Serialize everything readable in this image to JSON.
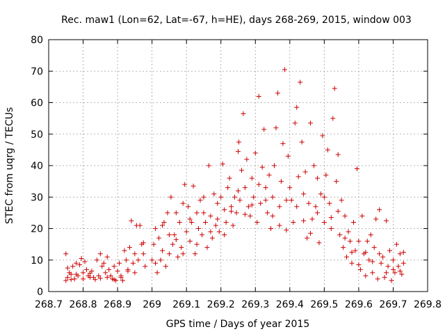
{
  "chart_data": {
    "type": "scatter",
    "title": "Rec. maw1 (Lon=62, Lat=-67, h=HE), days 268-269, 2015, window 003",
    "xlabel": "GPS time / Days of year 2015",
    "ylabel": "STEC from uqrg / TECUs",
    "xlim": [
      268.7,
      269.8
    ],
    "ylim": [
      0,
      80
    ],
    "xticks": [
      268.7,
      268.8,
      268.9,
      269.0,
      269.1,
      269.2,
      269.3,
      269.4,
      269.5,
      269.6,
      269.7,
      269.8
    ],
    "xtick_labels": [
      "268.7",
      "268.8",
      "268.9",
      "269",
      "269.1",
      "269.2",
      "269.3",
      "269.4",
      "269.5",
      "269.6",
      "269.7",
      "269.8"
    ],
    "yticks": [
      0,
      10,
      20,
      30,
      40,
      50,
      60,
      70,
      80
    ],
    "ytick_labels": [
      "0",
      "10",
      "20",
      "30",
      "40",
      "50",
      "60",
      "70",
      "80"
    ],
    "grid": true,
    "marker": "+",
    "color": "#cc0000",
    "series": [
      {
        "name": "STEC",
        "points": [
          [
            268.75,
            12.0
          ],
          [
            268.75,
            3.5
          ],
          [
            268.755,
            4.5
          ],
          [
            268.76,
            6.0
          ],
          [
            268.765,
            5.5
          ],
          [
            268.77,
            8.0
          ],
          [
            268.775,
            4.0
          ],
          [
            268.78,
            9.0
          ],
          [
            268.785,
            5.0
          ],
          [
            268.79,
            8.5
          ],
          [
            268.795,
            10.5
          ],
          [
            268.8,
            4.0
          ],
          [
            268.805,
            9.5
          ],
          [
            268.81,
            7.0
          ],
          [
            268.815,
            5.0
          ],
          [
            268.82,
            4.5
          ],
          [
            268.825,
            6.5
          ],
          [
            268.83,
            4.5
          ],
          [
            268.835,
            3.8
          ],
          [
            268.84,
            10.0
          ],
          [
            268.845,
            5.0
          ],
          [
            268.85,
            12.0
          ],
          [
            268.855,
            8.0
          ],
          [
            268.86,
            9.0
          ],
          [
            268.865,
            6.0
          ],
          [
            268.87,
            11.0
          ],
          [
            268.875,
            7.0
          ],
          [
            268.88,
            5.0
          ],
          [
            268.885,
            4.0
          ],
          [
            268.89,
            8.0
          ],
          [
            268.895,
            3.5
          ],
          [
            268.9,
            6.5
          ],
          [
            268.905,
            9.0
          ],
          [
            268.91,
            5.0
          ],
          [
            268.915,
            3.5
          ],
          [
            268.92,
            13.0
          ],
          [
            268.925,
            10.0
          ],
          [
            268.93,
            7.0
          ],
          [
            268.935,
            14.0
          ],
          [
            268.94,
            22.5
          ],
          [
            268.945,
            9.0
          ],
          [
            268.95,
            6.0
          ],
          [
            268.955,
            21.0
          ],
          [
            268.96,
            10.0
          ],
          [
            268.965,
            21.0
          ],
          [
            268.97,
            15.0
          ],
          [
            268.975,
            12.0
          ],
          [
            268.98,
            8.0
          ],
          [
            268.755,
            7.5
          ],
          [
            268.765,
            3.8
          ],
          [
            268.78,
            5.5
          ],
          [
            268.8,
            6.0
          ],
          [
            268.82,
            5.8
          ],
          [
            268.85,
            4.2
          ],
          [
            268.87,
            4.5
          ],
          [
            268.89,
            3.8
          ],
          [
            268.91,
            4.5
          ],
          [
            268.93,
            6.5
          ],
          [
            268.95,
            12.0
          ],
          [
            268.975,
            15.5
          ],
          [
            269.0,
            10.0
          ],
          [
            269.005,
            15.0
          ],
          [
            269.01,
            20.0
          ],
          [
            269.015,
            6.0
          ],
          [
            269.02,
            17.0
          ],
          [
            269.025,
            10.0
          ],
          [
            269.03,
            21.0
          ],
          [
            269.035,
            22.0
          ],
          [
            269.04,
            8.0
          ],
          [
            269.045,
            25.0
          ],
          [
            269.05,
            12.0
          ],
          [
            269.055,
            30.0
          ],
          [
            269.06,
            15.0
          ],
          [
            269.065,
            18.0
          ],
          [
            269.07,
            25.0
          ],
          [
            269.075,
            11.0
          ],
          [
            269.08,
            22.0
          ],
          [
            269.085,
            14.0
          ],
          [
            269.09,
            28.0
          ],
          [
            269.095,
            34.0
          ],
          [
            269.1,
            19.0
          ],
          [
            269.105,
            27.0
          ],
          [
            269.11,
            16.0
          ],
          [
            269.115,
            22.0
          ],
          [
            269.12,
            33.5
          ],
          [
            269.125,
            12.0
          ],
          [
            269.13,
            25.0
          ],
          [
            269.135,
            20.0
          ],
          [
            269.14,
            29.0
          ],
          [
            269.145,
            18.0
          ],
          [
            269.15,
            30.0
          ],
          [
            269.155,
            22.0
          ],
          [
            269.16,
            14.0
          ],
          [
            269.165,
            40.0
          ],
          [
            269.17,
            24.0
          ],
          [
            269.175,
            17.0
          ],
          [
            269.18,
            31.0
          ],
          [
            269.185,
            21.0
          ],
          [
            269.19,
            28.0
          ],
          [
            269.195,
            19.0
          ],
          [
            269.01,
            9.0
          ],
          [
            269.03,
            13.0
          ],
          [
            269.05,
            18.0
          ],
          [
            269.07,
            16.5
          ],
          [
            269.09,
            12.0
          ],
          [
            269.11,
            23.0
          ],
          [
            269.13,
            15.0
          ],
          [
            269.15,
            25.0
          ],
          [
            269.17,
            19.0
          ],
          [
            269.19,
            23.0
          ],
          [
            269.2,
            30.0
          ],
          [
            269.205,
            40.5
          ],
          [
            269.21,
            26.0
          ],
          [
            269.215,
            22.0
          ],
          [
            269.22,
            33.0
          ],
          [
            269.225,
            36.0
          ],
          [
            269.23,
            27.0
          ],
          [
            269.235,
            21.0
          ],
          [
            269.24,
            30.0
          ],
          [
            269.245,
            25.0
          ],
          [
            269.25,
            44.5
          ],
          [
            269.252,
            47.5
          ],
          [
            269.255,
            29.0
          ],
          [
            269.26,
            38.5
          ],
          [
            269.265,
            56.5
          ],
          [
            269.27,
            33.0
          ],
          [
            269.275,
            42.0
          ],
          [
            269.28,
            27.0
          ],
          [
            269.285,
            24.0
          ],
          [
            269.29,
            36.0
          ],
          [
            269.295,
            30.0
          ],
          [
            269.3,
            44.0
          ],
          [
            269.305,
            22.0
          ],
          [
            269.31,
            62.0
          ],
          [
            269.315,
            28.0
          ],
          [
            269.32,
            39.5
          ],
          [
            269.325,
            51.5
          ],
          [
            269.33,
            33.0
          ],
          [
            269.335,
            25.0
          ],
          [
            269.34,
            37.0
          ],
          [
            269.345,
            20.0
          ],
          [
            269.35,
            30.0
          ],
          [
            269.355,
            40.0
          ],
          [
            269.36,
            52.0
          ],
          [
            269.365,
            63.0
          ],
          [
            269.37,
            27.0
          ],
          [
            269.375,
            35.0
          ],
          [
            269.38,
            47.0
          ],
          [
            269.385,
            70.5
          ],
          [
            269.39,
            19.5
          ],
          [
            269.395,
            43.0
          ],
          [
            269.4,
            33.0
          ],
          [
            269.21,
            18.0
          ],
          [
            269.23,
            25.5
          ],
          [
            269.25,
            32.0
          ],
          [
            269.27,
            24.5
          ],
          [
            269.29,
            27.5
          ],
          [
            269.31,
            34.0
          ],
          [
            269.33,
            29.0
          ],
          [
            269.35,
            24.0
          ],
          [
            269.37,
            21.0
          ],
          [
            269.39,
            29.0
          ],
          [
            269.405,
            29.0
          ],
          [
            269.41,
            22.0
          ],
          [
            269.415,
            53.5
          ],
          [
            269.42,
            58.5
          ],
          [
            269.425,
            36.5
          ],
          [
            269.43,
            66.5
          ],
          [
            269.435,
            47.5
          ],
          [
            269.44,
            31.0
          ],
          [
            269.445,
            38.0
          ],
          [
            269.45,
            17.0
          ],
          [
            269.455,
            28.0
          ],
          [
            269.46,
            53.5
          ],
          [
            269.465,
            23.0
          ],
          [
            269.47,
            40.0
          ],
          [
            269.475,
            27.0
          ],
          [
            269.48,
            36.0
          ],
          [
            269.485,
            15.5
          ],
          [
            269.49,
            31.0
          ],
          [
            269.495,
            49.5
          ],
          [
            269.5,
            22.0
          ],
          [
            269.505,
            37.0
          ],
          [
            269.51,
            45.0
          ],
          [
            269.515,
            28.0
          ],
          [
            269.52,
            20.0
          ],
          [
            269.525,
            55.0
          ],
          [
            269.53,
            64.5
          ],
          [
            269.535,
            35.0
          ],
          [
            269.54,
            43.5
          ],
          [
            269.545,
            18.0
          ],
          [
            269.55,
            29.0
          ],
          [
            269.555,
            14.0
          ],
          [
            269.56,
            24.0
          ],
          [
            269.565,
            11.0
          ],
          [
            269.57,
            19.0
          ],
          [
            269.575,
            16.0
          ],
          [
            269.58,
            9.0
          ],
          [
            269.585,
            22.0
          ],
          [
            269.59,
            13.0
          ],
          [
            269.595,
            39.0
          ],
          [
            269.6,
            16.0
          ],
          [
            269.42,
            27.0
          ],
          [
            269.44,
            22.5
          ],
          [
            269.46,
            18.5
          ],
          [
            269.48,
            25.0
          ],
          [
            269.5,
            30.0
          ],
          [
            269.52,
            23.5
          ],
          [
            269.54,
            25.5
          ],
          [
            269.56,
            17.0
          ],
          [
            269.58,
            12.5
          ],
          [
            269.6,
            8.5
          ],
          [
            269.605,
            7.0
          ],
          [
            269.61,
            24.0
          ],
          [
            269.615,
            12.0
          ],
          [
            269.62,
            5.0
          ],
          [
            269.625,
            16.0
          ],
          [
            269.63,
            10.0
          ],
          [
            269.635,
            18.0
          ],
          [
            269.64,
            6.0
          ],
          [
            269.645,
            14.0
          ],
          [
            269.65,
            23.0
          ],
          [
            269.655,
            4.0
          ],
          [
            269.66,
            26.0
          ],
          [
            269.665,
            9.0
          ],
          [
            269.67,
            11.0
          ],
          [
            269.675,
            4.5
          ],
          [
            269.68,
            22.5
          ],
          [
            269.685,
            8.0
          ],
          [
            269.69,
            13.0
          ],
          [
            269.695,
            3.5
          ],
          [
            269.7,
            10.0
          ],
          [
            269.705,
            6.0
          ],
          [
            269.71,
            15.0
          ],
          [
            269.715,
            8.0
          ],
          [
            269.72,
            12.0
          ],
          [
            269.725,
            5.5
          ],
          [
            269.73,
            9.0
          ],
          [
            269.62,
            12.5
          ],
          [
            269.64,
            9.5
          ],
          [
            269.66,
            12.0
          ],
          [
            269.68,
            6.0
          ],
          [
            269.7,
            7.0
          ],
          [
            269.72,
            6.5
          ],
          [
            269.73,
            12.5
          ]
        ]
      }
    ]
  }
}
